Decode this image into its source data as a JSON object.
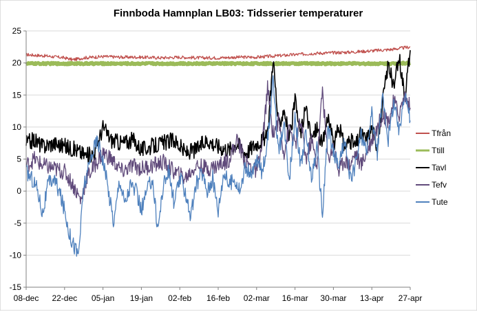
{
  "chart_data": {
    "type": "line",
    "title": "Finnboda Hamnplan LB03: Tidsserier temperaturer",
    "xlabel": "",
    "ylabel": "",
    "ylim": [
      -15,
      25
    ],
    "y_ticks": [
      -15,
      -10,
      -5,
      0,
      5,
      10,
      15,
      20,
      25
    ],
    "x_range_days": [
      0,
      140
    ],
    "x_ticks": [
      {
        "label": "08-dec",
        "day": 0
      },
      {
        "label": "22-dec",
        "day": 14
      },
      {
        "label": "05-jan",
        "day": 28
      },
      {
        "label": "19-jan",
        "day": 42
      },
      {
        "label": "02-feb",
        "day": 56
      },
      {
        "label": "16-feb",
        "day": 70
      },
      {
        "label": "02-mar",
        "day": 84
      },
      {
        "label": "16-mar",
        "day": 98
      },
      {
        "label": "30-mar",
        "day": 112
      },
      {
        "label": "13-apr",
        "day": 126
      },
      {
        "label": "27-apr",
        "day": 140
      }
    ],
    "grid": "horizontal",
    "legend_position": "right",
    "series": [
      {
        "name": "Tfrån",
        "color": "#c0504d",
        "x": [
          0,
          7,
          14,
          17,
          21,
          28,
          35,
          42,
          49,
          56,
          63,
          70,
          77,
          84,
          91,
          98,
          105,
          112,
          119,
          126,
          133,
          140
        ],
        "values": [
          21.3,
          21.1,
          20.8,
          20.5,
          20.8,
          21.0,
          20.9,
          20.9,
          20.8,
          20.9,
          20.8,
          20.8,
          20.9,
          20.9,
          21.1,
          21.3,
          21.5,
          21.6,
          21.7,
          21.9,
          22.1,
          22.5
        ]
      },
      {
        "name": "Ttill",
        "color": "#9bbb59",
        "x": [
          0,
          7,
          14,
          21,
          28,
          35,
          42,
          49,
          56,
          63,
          70,
          77,
          84,
          91,
          98,
          105,
          112,
          119,
          126,
          133,
          140
        ],
        "values": [
          19.9,
          19.9,
          19.9,
          19.9,
          19.9,
          19.9,
          19.9,
          19.9,
          19.9,
          19.9,
          19.9,
          19.9,
          19.9,
          19.9,
          19.9,
          19.9,
          19.9,
          19.9,
          19.9,
          19.9,
          20.0
        ]
      },
      {
        "name": "Tavl",
        "color": "#000000",
        "x": [
          0,
          3,
          6,
          10,
          14,
          18,
          22,
          25,
          28,
          31,
          35,
          39,
          42,
          46,
          50,
          54,
          58,
          62,
          66,
          70,
          74,
          77,
          80,
          84,
          86,
          88,
          90,
          92,
          94,
          96,
          98,
          100,
          102,
          104,
          106,
          108,
          110,
          112,
          114,
          116,
          118,
          120,
          122,
          124,
          126,
          128,
          130,
          132,
          134,
          136,
          138,
          140
        ],
        "values": [
          7.5,
          8,
          7,
          7.5,
          7,
          6.5,
          5.5,
          6,
          10,
          8,
          7.5,
          8,
          6.5,
          7,
          7.5,
          8,
          6,
          6.5,
          8,
          7,
          6.5,
          7.5,
          6,
          7.5,
          8,
          8.5,
          21,
          10,
          13,
          8,
          14,
          9,
          13,
          8,
          10,
          7,
          12,
          7,
          10,
          7,
          8,
          7,
          9,
          8,
          10,
          7,
          14,
          20,
          16,
          21,
          15,
          22
        ]
      },
      {
        "name": "Tefv",
        "color": "#604a7b",
        "x": [
          0,
          3,
          6,
          10,
          14,
          17,
          20,
          22,
          25,
          28,
          31,
          35,
          39,
          42,
          46,
          50,
          54,
          58,
          62,
          66,
          70,
          74,
          77,
          80,
          84,
          86,
          88,
          90,
          92,
          94,
          96,
          98,
          100,
          102,
          104,
          106,
          108,
          110,
          112,
          114,
          116,
          118,
          120,
          122,
          124,
          126,
          128,
          130,
          132,
          134,
          136,
          138,
          140
        ],
        "values": [
          4,
          5,
          4,
          3.5,
          3,
          1,
          -1.5,
          2,
          4,
          6,
          5,
          3,
          4,
          3.5,
          4,
          4.5,
          3,
          2,
          4,
          3.5,
          4,
          5,
          8,
          4.5,
          3,
          7,
          16,
          9,
          11,
          6,
          10,
          7,
          11,
          5,
          8,
          4,
          16,
          5,
          7,
          3,
          5,
          4,
          6,
          4,
          6,
          8,
          10,
          12,
          11,
          14,
          12,
          15,
          13
        ]
      },
      {
        "name": "Tute",
        "color": "#4f81bd",
        "x": [
          0,
          2,
          4,
          6,
          8,
          10,
          12,
          14,
          16,
          18,
          19,
          20,
          21,
          22,
          24,
          26,
          28,
          30,
          32,
          34,
          36,
          38,
          40,
          42,
          44,
          46,
          48,
          50,
          52,
          54,
          56,
          58,
          60,
          62,
          64,
          66,
          68,
          70,
          72,
          74,
          76,
          78,
          80,
          82,
          84,
          86,
          88,
          90,
          92,
          94,
          96,
          98,
          100,
          102,
          104,
          106,
          108,
          110,
          112,
          114,
          116,
          118,
          120,
          122,
          124,
          126,
          128,
          130,
          132,
          134,
          136,
          138,
          140
        ],
        "values": [
          3,
          2,
          0.5,
          -3.5,
          1,
          2,
          0,
          -3,
          -7,
          -9,
          -10,
          -5,
          1,
          2,
          6,
          8,
          5,
          0,
          -5,
          2,
          -2,
          1,
          0,
          -3,
          0,
          2,
          -6,
          1,
          3,
          -2,
          2,
          0,
          -4,
          1,
          3,
          0,
          2,
          -3,
          3,
          1,
          2,
          0,
          4,
          2,
          5,
          3,
          8,
          17,
          6,
          10,
          2,
          12,
          4,
          9,
          2,
          7,
          -4,
          10,
          6,
          4,
          8,
          2,
          4,
          9,
          6,
          12,
          6,
          15,
          8,
          14,
          9,
          16,
          11
        ]
      }
    ]
  }
}
